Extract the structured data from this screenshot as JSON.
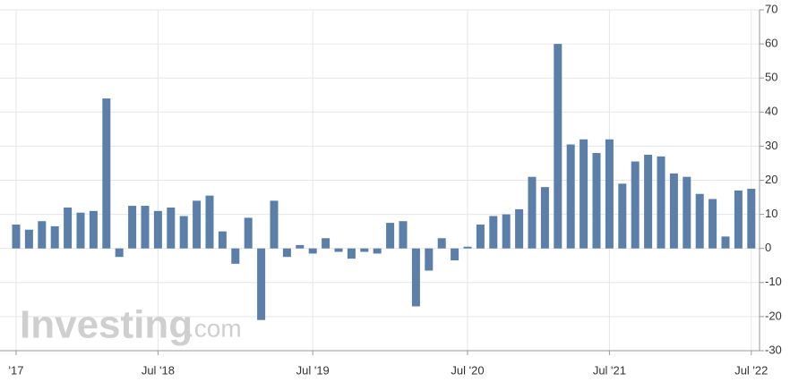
{
  "chart_data": {
    "type": "bar",
    "categories": [
      "'17",
      null,
      null,
      null,
      null,
      null,
      null,
      null,
      null,
      null,
      null,
      "Jul '18",
      null,
      null,
      null,
      null,
      null,
      null,
      null,
      null,
      null,
      null,
      null,
      "Jul '19",
      null,
      null,
      null,
      null,
      null,
      null,
      null,
      null,
      null,
      null,
      null,
      "Jul '20",
      null,
      null,
      null,
      null,
      null,
      null,
      null,
      null,
      null,
      null,
      "Jul '21",
      null,
      null,
      null,
      null,
      null,
      null,
      null,
      null,
      null,
      null,
      "Jul '22"
    ],
    "values": [
      7,
      5.5,
      8,
      6.5,
      12,
      10.5,
      11,
      44,
      -2.5,
      12.5,
      12.5,
      11,
      12,
      9.5,
      14,
      15.5,
      5,
      -4.5,
      9,
      -21,
      14,
      -2.5,
      1,
      -1.5,
      3,
      -1,
      -3,
      -1,
      -1.5,
      7.5,
      8,
      -17,
      -6.5,
      3,
      -3.5,
      0.5,
      7,
      9.5,
      10,
      11.5,
      21,
      18,
      60,
      30.5,
      32,
      28,
      32,
      19,
      25.5,
      27.5,
      27,
      22,
      21,
      16,
      14.5,
      3.5,
      17,
      17.5
    ],
    "color": "#5b7fa8",
    "ylim": [
      -30,
      70
    ],
    "yticks": [
      -30,
      -20,
      -10,
      0,
      10,
      20,
      30,
      40,
      50,
      60,
      70
    ],
    "grid": true,
    "watermark": {
      "brand": "Investing",
      "suffix": ".com"
    }
  }
}
